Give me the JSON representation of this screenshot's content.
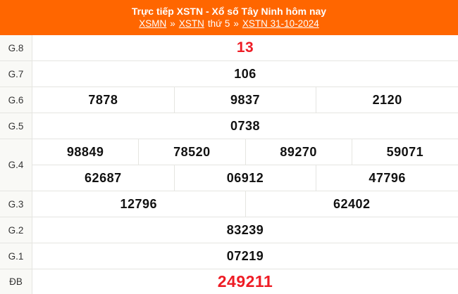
{
  "colors": {
    "accent": "#FF6600",
    "highlight": "#ee1c25",
    "border": "#e5e5e1",
    "labelbg": "#f9f9f6"
  },
  "header": {
    "title": "Trực tiếp XSTN - Xổ số Tây Ninh hôm nay",
    "breadcrumb": {
      "link_xsmn": "XSMN",
      "sep1": "»",
      "link_xstn": "XSTN",
      "weekday": "thứ 5",
      "sep2": "»",
      "link_date": "XSTN 31-10-2024"
    }
  },
  "table": {
    "rows": [
      {
        "label": "G.8",
        "values": [
          "13"
        ]
      },
      {
        "label": "G.7",
        "values": [
          "106"
        ]
      },
      {
        "label": "G.6",
        "values": [
          "7878",
          "9837",
          "2120"
        ]
      },
      {
        "label": "G.5",
        "values": [
          "0738"
        ]
      },
      {
        "label": "G.4",
        "lines": [
          [
            "98849",
            "78520",
            "89270",
            "59071"
          ],
          [
            "62687",
            "06912",
            "47796"
          ]
        ]
      },
      {
        "label": "G.3",
        "values": [
          "12796",
          "62402"
        ]
      },
      {
        "label": "G.2",
        "values": [
          "83239"
        ]
      },
      {
        "label": "G.1",
        "values": [
          "07219"
        ]
      },
      {
        "label": "ĐB",
        "values": [
          "249211"
        ]
      }
    ]
  }
}
